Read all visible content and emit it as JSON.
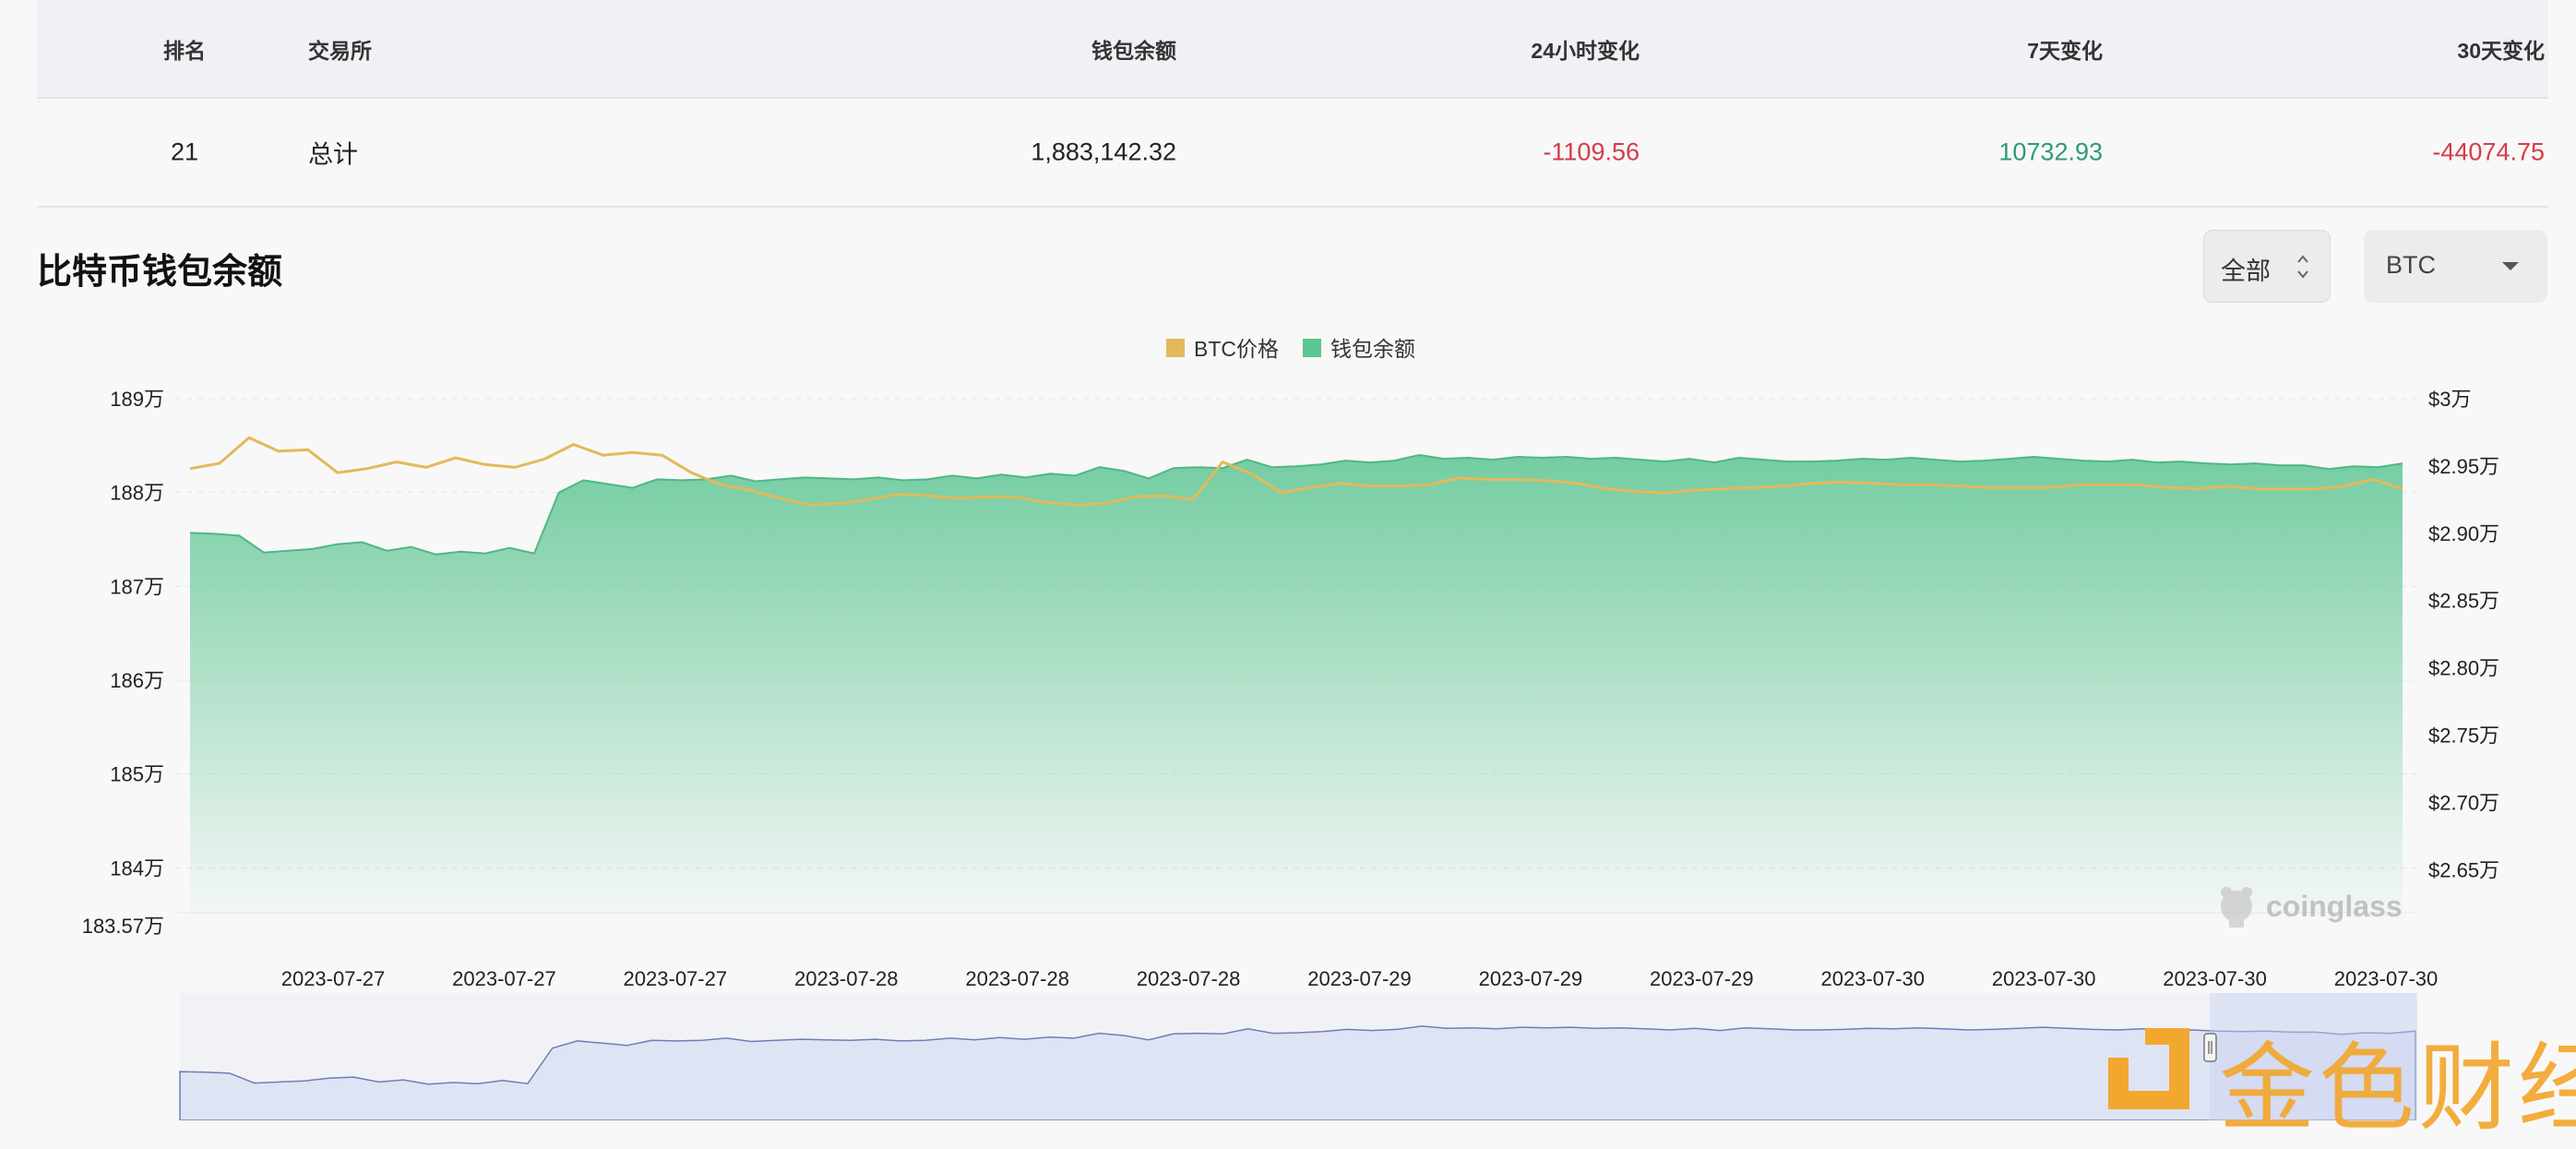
{
  "table": {
    "headers": {
      "rank": "排名",
      "exchange": "交易所",
      "balance": "钱包余额",
      "change_24h": "24小时变化",
      "change_7d": "7天变化",
      "change_30d": "30天变化"
    },
    "row": {
      "rank": "21",
      "exchange": "总计",
      "balance": "1,883,142.32",
      "change_24h": "-1109.56",
      "change_7d": "10732.93",
      "change_30d": "-44074.75"
    }
  },
  "section": {
    "title": "比特币钱包余额",
    "range_select": "全部",
    "coin_select": "BTC"
  },
  "watermarks": {
    "coinglass": "coinglass",
    "jinse": "金色财经"
  },
  "colors": {
    "price_line": "#e3b95b",
    "balance_area": "#5cc592",
    "negative": "#d63b46",
    "positive": "#2f9a74",
    "navigator_fill": "#dfe4f4",
    "navigator_line": "#6d7fb7"
  },
  "chart_data": {
    "type": "area",
    "legend": [
      "BTC价格",
      "钱包余额"
    ],
    "legend_position": "top-center",
    "grid": true,
    "x_tick_labels": [
      "2023-07-27",
      "2023-07-27",
      "2023-07-27",
      "2023-07-28",
      "2023-07-28",
      "2023-07-28",
      "2023-07-29",
      "2023-07-29",
      "2023-07-29",
      "2023-07-30",
      "2023-07-30",
      "2023-07-30",
      "2023-07-30"
    ],
    "y_left": {
      "ticks": [
        184,
        185,
        186,
        187,
        188,
        189
      ],
      "tick_labels": [
        "184万",
        "185万",
        "186万",
        "187万",
        "188万",
        "189万"
      ],
      "min": 183.57,
      "min_label": "183.57万",
      "max": 189
    },
    "y_right": {
      "ticks": [
        2.65,
        2.7,
        2.75,
        2.8,
        2.85,
        2.9,
        2.95,
        3.0
      ],
      "tick_labels": [
        "$2.65万",
        "$2.70万",
        "$2.75万",
        "$2.80万",
        "$2.85万",
        "$2.90万",
        "$2.95万",
        "$3万"
      ],
      "min": 2.62,
      "max": 3.0
    },
    "series": [
      {
        "name": "钱包余额",
        "axis": "left",
        "values": [
          187.57,
          187.56,
          187.54,
          187.36,
          187.38,
          187.4,
          187.45,
          187.47,
          187.38,
          187.42,
          187.34,
          187.37,
          187.35,
          187.41,
          187.35,
          188.0,
          188.13,
          188.09,
          188.05,
          188.14,
          188.13,
          188.14,
          188.18,
          188.12,
          188.14,
          188.16,
          188.15,
          188.14,
          188.16,
          188.13,
          188.14,
          188.18,
          188.15,
          188.19,
          188.16,
          188.2,
          188.18,
          188.27,
          188.23,
          188.15,
          188.26,
          188.27,
          188.26,
          188.35,
          188.27,
          188.28,
          188.3,
          188.34,
          188.32,
          188.34,
          188.4,
          188.36,
          188.37,
          188.35,
          188.38,
          188.37,
          188.38,
          188.36,
          188.37,
          188.35,
          188.33,
          188.36,
          188.32,
          188.37,
          188.35,
          188.33,
          188.33,
          188.34,
          188.36,
          188.35,
          188.37,
          188.35,
          188.33,
          188.34,
          188.36,
          188.38,
          188.36,
          188.34,
          188.33,
          188.35,
          188.32,
          188.33,
          188.31,
          188.3,
          188.31,
          188.29,
          188.29,
          188.25,
          188.28,
          188.27,
          188.31
        ]
      },
      {
        "name": "BTC价格",
        "axis": "right",
        "values": [
          2.948,
          2.952,
          2.971,
          2.961,
          2.962,
          2.945,
          2.948,
          2.953,
          2.949,
          2.956,
          2.951,
          2.949,
          2.955,
          2.966,
          2.958,
          2.96,
          2.958,
          2.945,
          2.936,
          2.932,
          2.926,
          2.921,
          2.922,
          2.925,
          2.929,
          2.928,
          2.926,
          2.927,
          2.927,
          2.923,
          2.921,
          2.922,
          2.927,
          2.928,
          2.925,
          2.953,
          2.944,
          2.93,
          2.934,
          2.937,
          2.935,
          2.935,
          2.936,
          2.941,
          2.94,
          2.94,
          2.939,
          2.937,
          2.933,
          2.931,
          2.93,
          2.932,
          2.933,
          2.934,
          2.935,
          2.937,
          2.938,
          2.937,
          2.936,
          2.936,
          2.935,
          2.934,
          2.934,
          2.934,
          2.936,
          2.936,
          2.936,
          2.934,
          2.933,
          2.935,
          2.933,
          2.933,
          2.933,
          2.935,
          2.94,
          2.933
        ]
      }
    ]
  }
}
